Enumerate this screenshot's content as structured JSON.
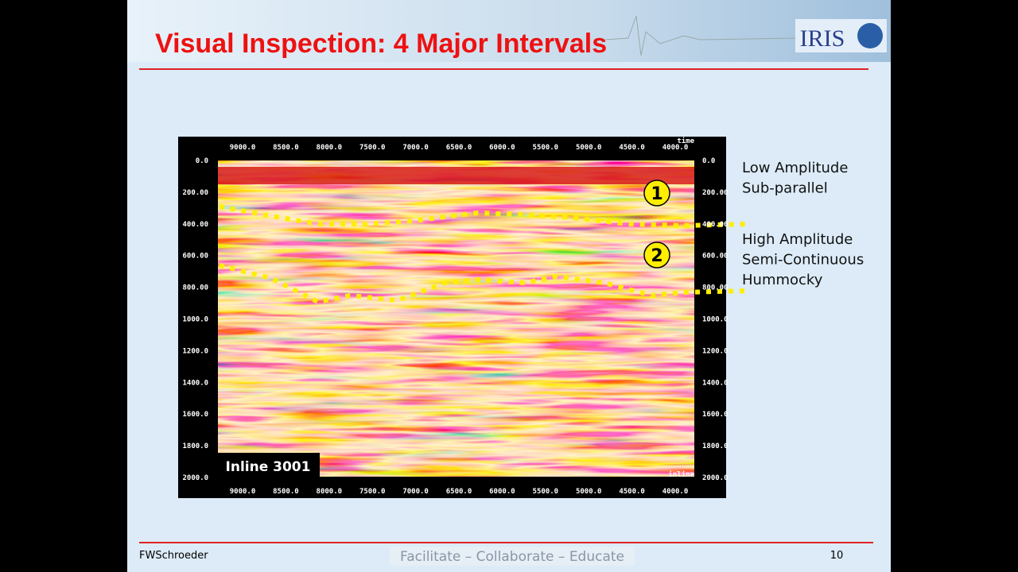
{
  "header": {
    "title": "Visual Inspection: 4 Major Intervals",
    "logo": "IRIS"
  },
  "seismic": {
    "top_ticks": [
      "9000.0",
      "8500.0",
      "8000.0",
      "7500.0",
      "7000.0",
      "6500.0",
      "6000.0",
      "5500.0",
      "5000.0",
      "4500.0",
      "4000.0"
    ],
    "depth_ticks": [
      "0.0",
      "200.00",
      "400.00",
      "600.00",
      "800.00",
      "1000.0",
      "1200.0",
      "1400.0",
      "1600.0",
      "1800.0",
      "2000.0"
    ],
    "time_label": "time",
    "inline_label": "inline",
    "section_label": "Inline 3001",
    "markers": [
      "1",
      "2"
    ]
  },
  "annotations": [
    {
      "lines": [
        "Low Amplitude",
        "Sub-parallel"
      ]
    },
    {
      "lines": [
        "High Amplitude",
        "Semi-Continuous",
        "Hummocky"
      ]
    }
  ],
  "footer": {
    "author": "FWSchroeder",
    "tagline": "Facilitate – Collaborate – Educate",
    "page": "10"
  }
}
